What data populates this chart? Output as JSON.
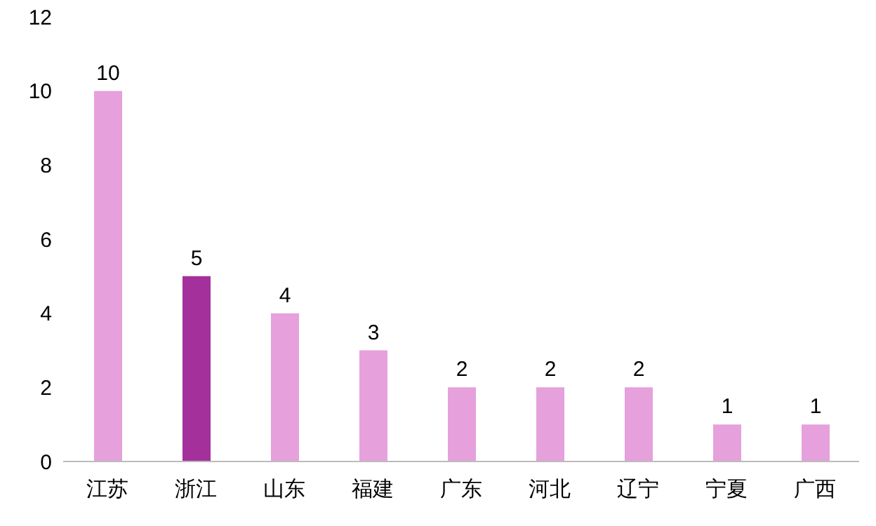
{
  "chart_data": {
    "type": "bar",
    "categories": [
      "江苏",
      "浙江",
      "山东",
      "福建",
      "广东",
      "河北",
      "辽宁",
      "宁夏",
      "广西"
    ],
    "values": [
      10,
      5,
      4,
      3,
      2,
      2,
      2,
      1,
      1
    ],
    "colors": [
      "#e6a0dc",
      "#a3309b",
      "#e6a0dc",
      "#e6a0dc",
      "#e6a0dc",
      "#e6a0dc",
      "#e6a0dc",
      "#e6a0dc",
      "#e6a0dc"
    ],
    "ylim": [
      0,
      12
    ],
    "yticks": [
      0,
      2,
      4,
      6,
      8,
      10,
      12
    ],
    "grid": false,
    "data_labels": true
  }
}
